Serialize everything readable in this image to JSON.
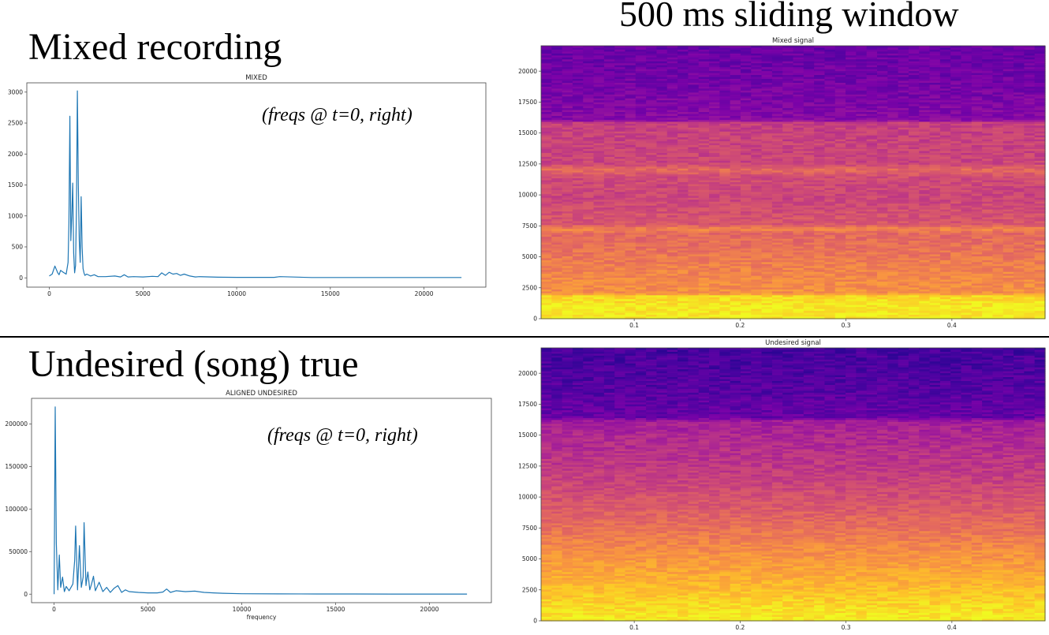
{
  "headings": {
    "mixed": "Mixed recording",
    "window": "500 ms sliding window",
    "undesired": "Undesired (song) true"
  },
  "notes": {
    "top": "(freqs @ t=0, right)",
    "bottom": "(freqs @ t=0, right)"
  },
  "colors": {
    "line": "#1f77b4",
    "spectrogram_colormap": "plasma"
  },
  "chart_data": [
    {
      "id": "mixed-spectrum",
      "type": "line",
      "title": "MIXED",
      "xlabel": "",
      "ylabel": "",
      "xlim": [
        -1200,
        23300
      ],
      "ylim": [
        -150,
        3150
      ],
      "xticks": [
        0,
        5000,
        10000,
        15000,
        20000
      ],
      "yticks": [
        0,
        500,
        1000,
        1500,
        2000,
        2500,
        3000
      ],
      "series": [
        {
          "x": [
            0,
            150,
            300,
            450,
            520,
            600,
            750,
            900,
            1000,
            1050,
            1100,
            1150,
            1200,
            1250,
            1300,
            1350,
            1400,
            1450,
            1500,
            1550,
            1600,
            1650,
            1700,
            1750,
            1800,
            1850,
            1900,
            2000,
            2200,
            2400,
            2600,
            3000,
            3500,
            3800,
            4000,
            4200,
            4500,
            5000,
            5500,
            5800,
            6000,
            6200,
            6400,
            6600,
            6800,
            7000,
            7200,
            7500,
            7800,
            8000,
            9000,
            10000,
            12000,
            12300,
            14000,
            16000,
            18000,
            20000,
            22000
          ],
          "y": [
            30,
            60,
            190,
            80,
            50,
            120,
            90,
            60,
            250,
            900,
            2610,
            600,
            1000,
            1530,
            400,
            80,
            200,
            1200,
            3020,
            1500,
            600,
            250,
            1310,
            500,
            150,
            80,
            40,
            60,
            30,
            50,
            20,
            20,
            30,
            15,
            50,
            15,
            20,
            15,
            25,
            20,
            80,
            40,
            90,
            60,
            70,
            40,
            60,
            30,
            15,
            20,
            10,
            8,
            8,
            20,
            6,
            5,
            5,
            5,
            5
          ]
        }
      ]
    },
    {
      "id": "undesired-spectrum",
      "type": "line",
      "title": "ALIGNED UNDESIRED",
      "xlabel": "frequency",
      "ylabel": "",
      "xlim": [
        -1200,
        23300
      ],
      "ylim": [
        -10000,
        230000
      ],
      "xticks": [
        0,
        5000,
        10000,
        15000,
        20000
      ],
      "yticks": [
        0,
        50000,
        100000,
        150000,
        200000
      ],
      "series": [
        {
          "x": [
            0,
            60,
            120,
            200,
            280,
            350,
            450,
            550,
            650,
            800,
            1000,
            1100,
            1150,
            1250,
            1350,
            1450,
            1550,
            1600,
            1700,
            1800,
            1900,
            2000,
            2100,
            2200,
            2400,
            2600,
            2800,
            3000,
            3200,
            3400,
            3600,
            3800,
            4000,
            4500,
            5000,
            5500,
            5800,
            6000,
            6200,
            6500,
            7000,
            7500,
            8000,
            8500,
            9000,
            10000,
            12000,
            14000,
            16000,
            18000,
            20000,
            22000
          ],
          "y": [
            0,
            220000,
            60000,
            5000,
            46000,
            8000,
            20000,
            3000,
            9000,
            4000,
            12000,
            40000,
            80000,
            5000,
            57000,
            8000,
            20000,
            84000,
            10000,
            26000,
            5000,
            12000,
            21000,
            4000,
            14000,
            3000,
            8000,
            2000,
            7000,
            10000,
            2000,
            5000,
            3000,
            2000,
            1500,
            1500,
            2500,
            6000,
            2000,
            4000,
            3000,
            3500,
            2000,
            1500,
            1000,
            500,
            300,
            200,
            200,
            100,
            100,
            100
          ]
        }
      ]
    },
    {
      "id": "mixed-spectrogram",
      "type": "heatmap",
      "title": "Mixed signal",
      "xlabel": "",
      "ylabel": "",
      "xlim": [
        0.012,
        0.488
      ],
      "ylim": [
        0,
        22050
      ],
      "xticks": [
        0.1,
        0.2,
        0.3,
        0.4
      ],
      "yticks": [
        0,
        2500,
        5000,
        7500,
        10000,
        12500,
        15000,
        17500,
        20000
      ],
      "colormap": "plasma",
      "intensity_profile": [
        {
          "f": 0,
          "v": 0.97
        },
        {
          "f": 1000,
          "v": 0.97
        },
        {
          "f": 1900,
          "v": 0.92
        },
        {
          "f": 2100,
          "v": 0.74
        },
        {
          "f": 4000,
          "v": 0.7
        },
        {
          "f": 6000,
          "v": 0.64
        },
        {
          "f": 7000,
          "v": 0.62
        },
        {
          "f": 7300,
          "v": 0.72
        },
        {
          "f": 7700,
          "v": 0.56
        },
        {
          "f": 10000,
          "v": 0.5
        },
        {
          "f": 11500,
          "v": 0.52
        },
        {
          "f": 12100,
          "v": 0.63
        },
        {
          "f": 12600,
          "v": 0.5
        },
        {
          "f": 15900,
          "v": 0.48
        },
        {
          "f": 16100,
          "v": 0.28
        },
        {
          "f": 19000,
          "v": 0.23
        },
        {
          "f": 22050,
          "v": 0.2
        }
      ]
    },
    {
      "id": "undesired-spectrogram",
      "type": "heatmap",
      "title": "Undesired signal",
      "xlabel": "",
      "ylabel": "",
      "xlim": [
        0.012,
        0.488
      ],
      "ylim": [
        0,
        22050
      ],
      "xticks": [
        0.1,
        0.2,
        0.3,
        0.4
      ],
      "yticks": [
        0,
        2500,
        5000,
        7500,
        10000,
        12500,
        15000,
        17500,
        20000
      ],
      "colormap": "plasma",
      "intensity_profile": [
        {
          "f": 0,
          "v": 0.98
        },
        {
          "f": 1500,
          "v": 0.92
        },
        {
          "f": 3500,
          "v": 0.82
        },
        {
          "f": 6000,
          "v": 0.72
        },
        {
          "f": 9000,
          "v": 0.58
        },
        {
          "f": 12000,
          "v": 0.47
        },
        {
          "f": 15000,
          "v": 0.4
        },
        {
          "f": 16200,
          "v": 0.36
        },
        {
          "f": 16500,
          "v": 0.2
        },
        {
          "f": 19000,
          "v": 0.15
        },
        {
          "f": 22050,
          "v": 0.12
        }
      ]
    }
  ]
}
